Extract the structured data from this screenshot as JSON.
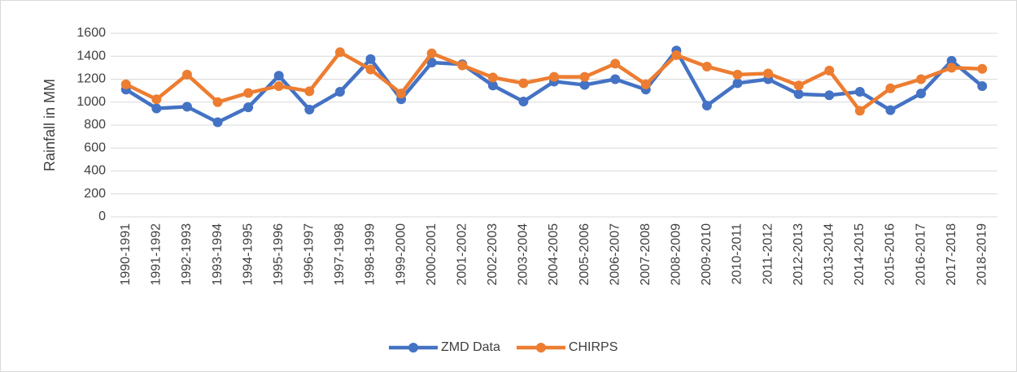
{
  "chart_data": {
    "type": "line",
    "y_label": "Rainfall in MM",
    "categories": [
      "1990-1991",
      "1991-1992",
      "1992-1993",
      "1993-1994",
      "1994-1995",
      "1995-1996",
      "1996-1997",
      "1997-1998",
      "1998-1999",
      "1999-2000",
      "2000-2001",
      "2001-2002",
      "2002-2003",
      "2003-2004",
      "2004-2005",
      "2005-2006",
      "2006-2007",
      "2007-2008",
      "2008-2009",
      "2009-2010",
      "2010-2011",
      "2011-2012",
      "2012-2013",
      "2013-2014",
      "2014-2015",
      "2015-2016",
      "2016-2017",
      "2017-2018",
      "2018-2019"
    ],
    "series": [
      {
        "name": "ZMD Data",
        "color": "#4472c4",
        "values": [
          1110,
          945,
          960,
          825,
          955,
          1230,
          935,
          1090,
          1375,
          1025,
          1345,
          1330,
          1145,
          1005,
          1180,
          1150,
          1200,
          1110,
          1450,
          970,
          1165,
          1200,
          1070,
          1060,
          1090,
          930,
          1075,
          1360,
          1140
        ]
      },
      {
        "name": "CHIRPS",
        "color": "#ed7d31",
        "values": [
          1155,
          1025,
          1240,
          1000,
          1080,
          1140,
          1095,
          1435,
          1285,
          1075,
          1425,
          1320,
          1215,
          1165,
          1220,
          1220,
          1335,
          1155,
          1410,
          1310,
          1240,
          1250,
          1145,
          1275,
          925,
          1120,
          1200,
          1300,
          1290
        ]
      }
    ],
    "ylim": [
      0,
      1600
    ],
    "yticks": [
      0,
      200,
      400,
      600,
      800,
      1000,
      1200,
      1400,
      1600
    ],
    "grid": true,
    "legend": "bottom"
  }
}
